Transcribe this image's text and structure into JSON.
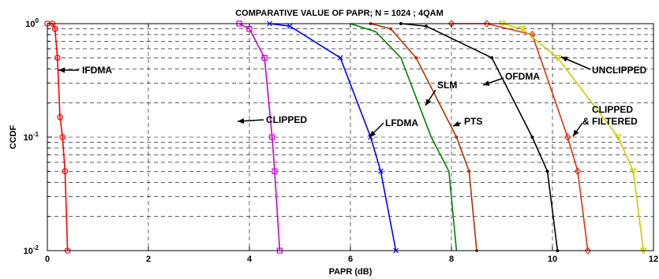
{
  "chart_data": {
    "type": "line",
    "title": "COMPARATIVE VALUE OF PAPR; N = 1024 ; 4QAM",
    "xlabel": "PAPR (dB)",
    "ylabel": "CCDF",
    "xlim": [
      0,
      12
    ],
    "ylim": [
      0.01,
      1
    ],
    "yscale": "log",
    "grid": true,
    "x_ticks": [
      0,
      2,
      4,
      6,
      8,
      10,
      12
    ],
    "x_tick_labels": [
      "0",
      "2",
      "4",
      "6",
      "8",
      "10",
      "12"
    ],
    "y_ticks": [
      {
        "base": "10",
        "exp": "-2",
        "value": 0.01
      },
      {
        "base": "10",
        "exp": "-1",
        "value": 0.1
      },
      {
        "base": "10",
        "exp": "0",
        "value": 1
      }
    ],
    "series": [
      {
        "name": "IFDMA",
        "color": "#ff0000",
        "marker": "circle",
        "x": [
          0.0,
          0.1,
          0.15,
          0.2,
          0.25,
          0.3,
          0.35,
          0.4
        ],
        "y": [
          1.0,
          1.0,
          0.9,
          0.5,
          0.15,
          0.1,
          0.05,
          0.01
        ]
      },
      {
        "name": "CLIPPED",
        "color": "#cc00cc",
        "marker": "square",
        "x": [
          3.8,
          4.0,
          4.3,
          4.45,
          4.5,
          4.6
        ],
        "y": [
          1.0,
          0.9,
          0.5,
          0.1,
          0.05,
          0.01
        ]
      },
      {
        "name": "LFDMA",
        "color": "#0000ff",
        "marker": "x",
        "x": [
          4.4,
          4.8,
          5.8,
          6.4,
          6.6,
          6.9
        ],
        "y": [
          1.0,
          0.95,
          0.5,
          0.1,
          0.05,
          0.01
        ]
      },
      {
        "name": "SLM",
        "color": "#008000",
        "marker": "none",
        "x": [
          6.0,
          6.5,
          7.0,
          7.6,
          7.95,
          8.1
        ],
        "y": [
          1.0,
          0.85,
          0.5,
          0.1,
          0.05,
          0.01
        ]
      },
      {
        "name": "PTS",
        "color": "#b03000",
        "marker": "dot",
        "x": [
          6.4,
          6.8,
          7.3,
          8.1,
          8.35,
          8.5
        ],
        "y": [
          1.0,
          0.9,
          0.5,
          0.1,
          0.05,
          0.01
        ]
      },
      {
        "name": "OFDMA",
        "color": "#000000",
        "marker": "dot",
        "x": [
          7.0,
          7.5,
          8.8,
          9.6,
          9.9,
          10.1
        ],
        "y": [
          1.0,
          0.95,
          0.5,
          0.1,
          0.05,
          0.01
        ]
      },
      {
        "name": "CLIPPED & FILTERED",
        "color": "#e03010",
        "marker": "diamond",
        "x": [
          8.0,
          8.7,
          9.6,
          10.3,
          10.5,
          10.7
        ],
        "y": [
          1.0,
          1.0,
          0.8,
          0.1,
          0.05,
          0.01
        ]
      },
      {
        "name": "UNCLIPPED",
        "color": "#cccc00",
        "marker": "triangle-down",
        "x": [
          9.0,
          9.4,
          10.1,
          11.3,
          11.6,
          11.8
        ],
        "y": [
          1.0,
          0.9,
          0.5,
          0.1,
          0.05,
          0.01
        ]
      }
    ],
    "annotations": [
      {
        "text": "IFDMA",
        "series": "IFDMA"
      },
      {
        "text": "CLIPPED",
        "series": "CLIPPED"
      },
      {
        "text": "LFDMA",
        "series": "LFDMA"
      },
      {
        "text": "SLM",
        "series": "SLM"
      },
      {
        "text": "PTS",
        "series": "PTS"
      },
      {
        "text": "OFDMA",
        "series": "OFDMA"
      },
      {
        "text": "CLIPPED",
        "series": "CLIPPED & FILTERED"
      },
      {
        "text": "& FILTERED",
        "series": "CLIPPED & FILTERED"
      },
      {
        "text": "UNCLIPPED",
        "series": "UNCLIPPED"
      }
    ]
  }
}
